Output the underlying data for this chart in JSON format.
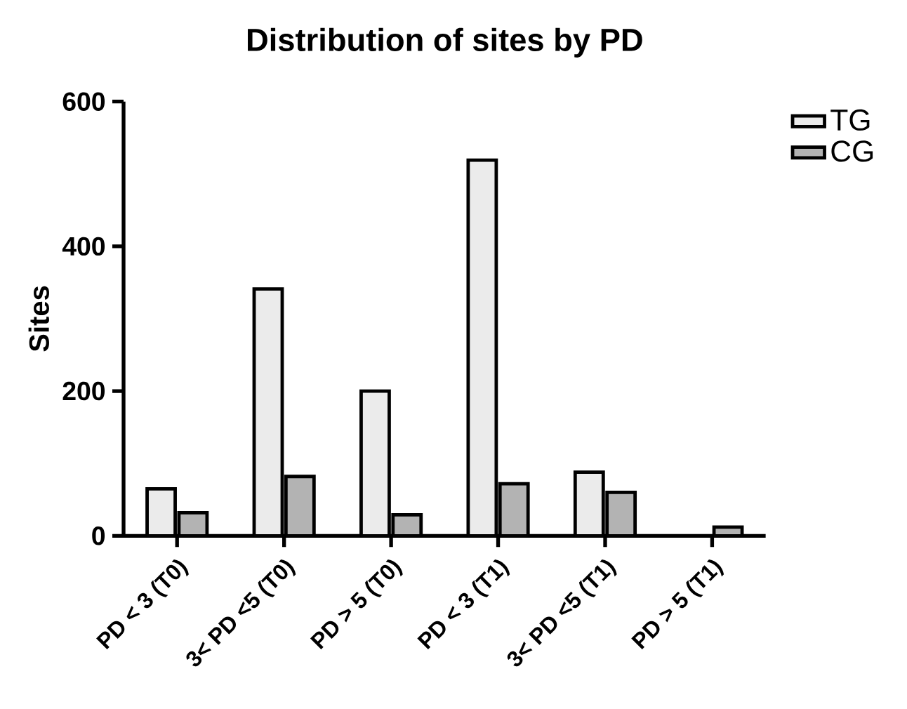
{
  "chart_data": {
    "type": "bar",
    "title": "Distribution of sites by PD",
    "ylabel": "Sites",
    "categories": [
      "PD < 3 (T0)",
      "3< PD <5 (T0)",
      "PD > 5 (T0)",
      "PD < 3 (T1)",
      "3< PD <5 (T1)",
      "PD > 5 (T1)"
    ],
    "series": [
      {
        "name": "TG",
        "color": "#ebebeb",
        "values": [
          65,
          341,
          200,
          519,
          88,
          0
        ]
      },
      {
        "name": "CG",
        "color": "#b3b3b3",
        "values": [
          32,
          82,
          29,
          72,
          60,
          12
        ]
      }
    ],
    "ylim": [
      0,
      600
    ],
    "yticks": [
      0,
      200,
      400,
      600
    ],
    "grid": false,
    "legend": "top right"
  }
}
